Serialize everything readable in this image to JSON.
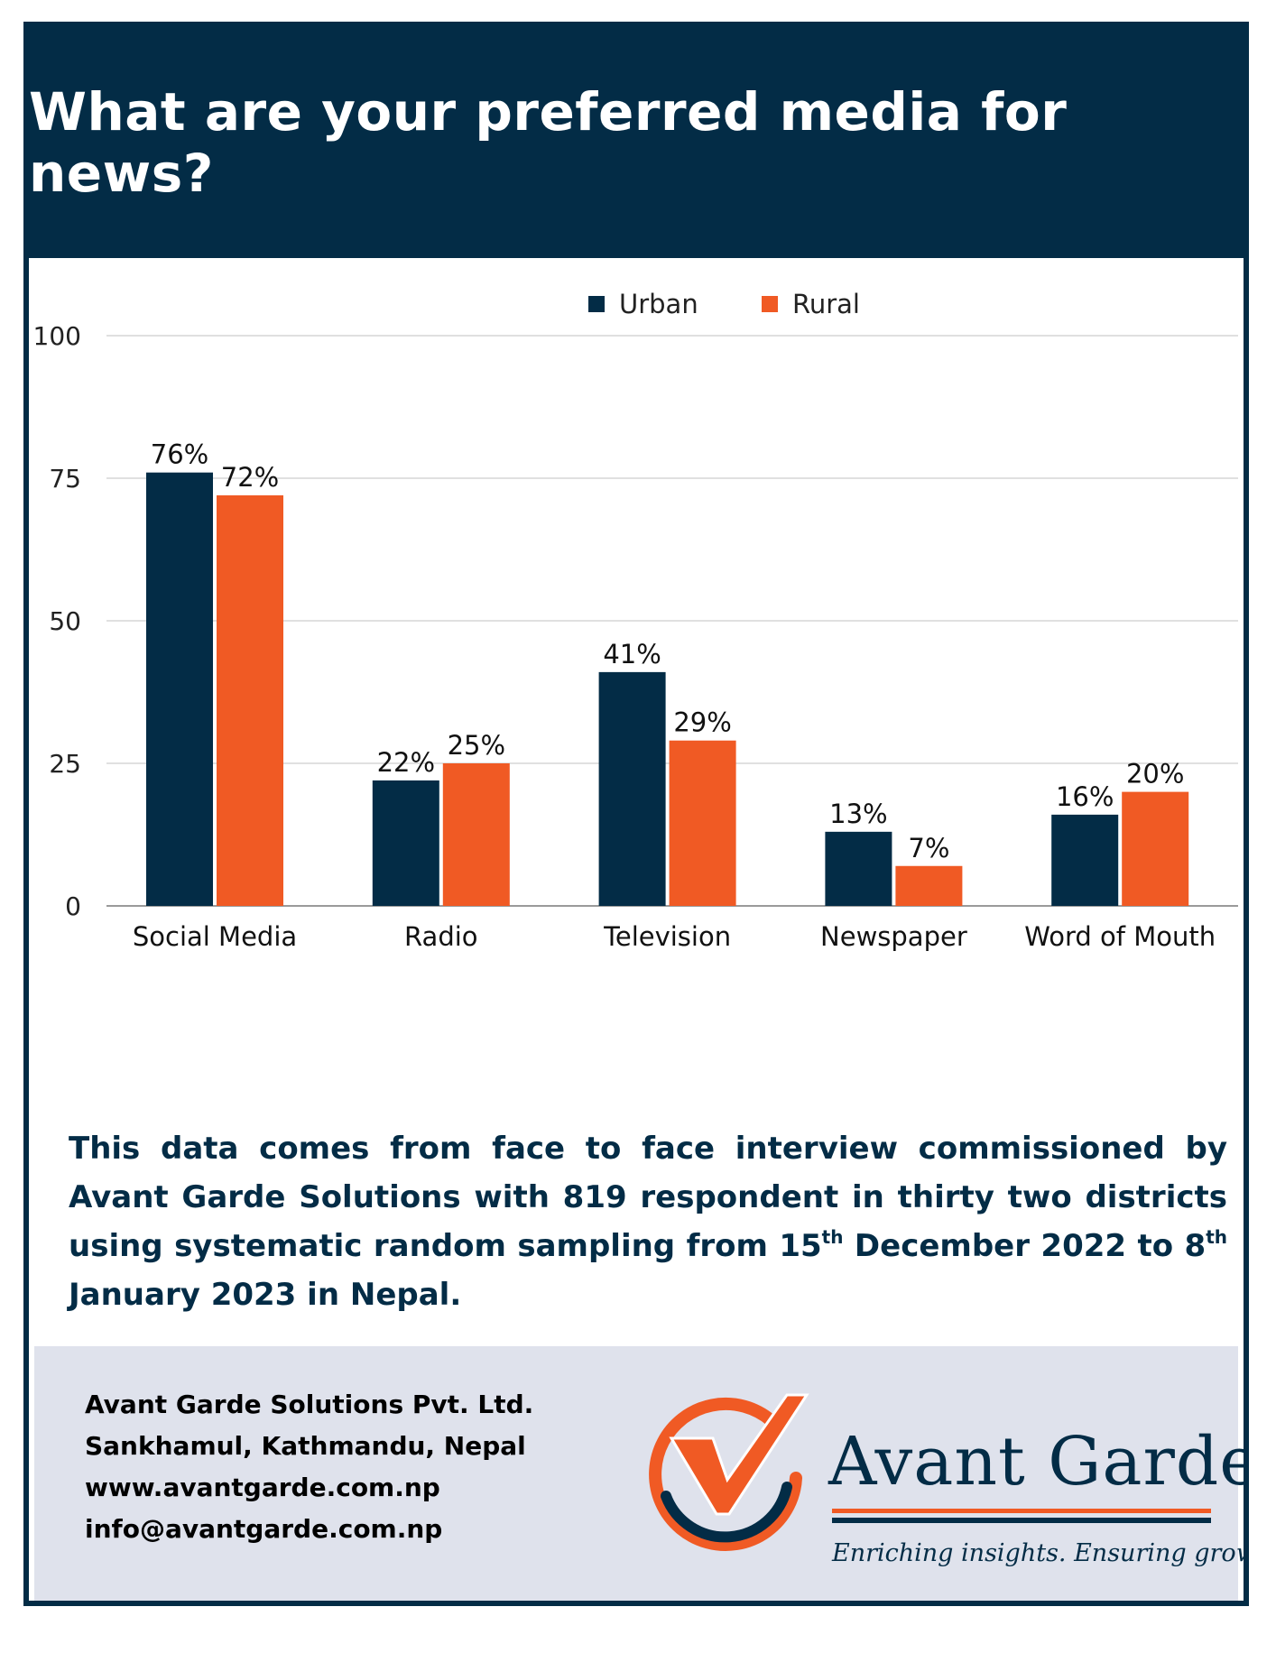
{
  "header": {
    "title": "What are your preferred media for news?"
  },
  "colors": {
    "urban": "#032c46",
    "rural": "#f05a24",
    "header_bg": "#032c46",
    "footer_bg": "#dfe2ec"
  },
  "chart_data": {
    "type": "bar",
    "categories": [
      "Social Media",
      "Radio",
      "Television",
      "Newspaper",
      "Word of Mouth"
    ],
    "series": [
      {
        "name": "Urban",
        "values": [
          76,
          22,
          41,
          13,
          16
        ],
        "labels": [
          "76%",
          "22%",
          "41%",
          "13%",
          "16%"
        ]
      },
      {
        "name": "Rural",
        "values": [
          72,
          25,
          29,
          7,
          20
        ],
        "labels": [
          "72%",
          "25%",
          "29%",
          "7%",
          "20%"
        ]
      }
    ],
    "yticks": [
      "0",
      "25",
      "50",
      "75",
      "100"
    ],
    "ylim": [
      0,
      100
    ],
    "grid": true,
    "legend": "top-center"
  },
  "note": {
    "part1": "This data comes from face to face interview commissioned by Avant Garde Solutions with 819 respondent in thirty two districts using systematic random sampling from 15",
    "sup1": "th",
    "part2": " December 2022 to 8",
    "sup2": "th",
    "part3": " January 2023 in Nepal."
  },
  "footer": {
    "contact": [
      "Avant Garde Solutions Pvt. Ltd.",
      "Sankhamul, Kathmandu, Nepal",
      "www.avantgarde.com.np",
      "info@avantgarde.com.np"
    ],
    "brand": "Avant Garde",
    "tagline": "Enriching insights. Ensuring growth.",
    "logo_icon": "checkmark-circle-logo"
  }
}
